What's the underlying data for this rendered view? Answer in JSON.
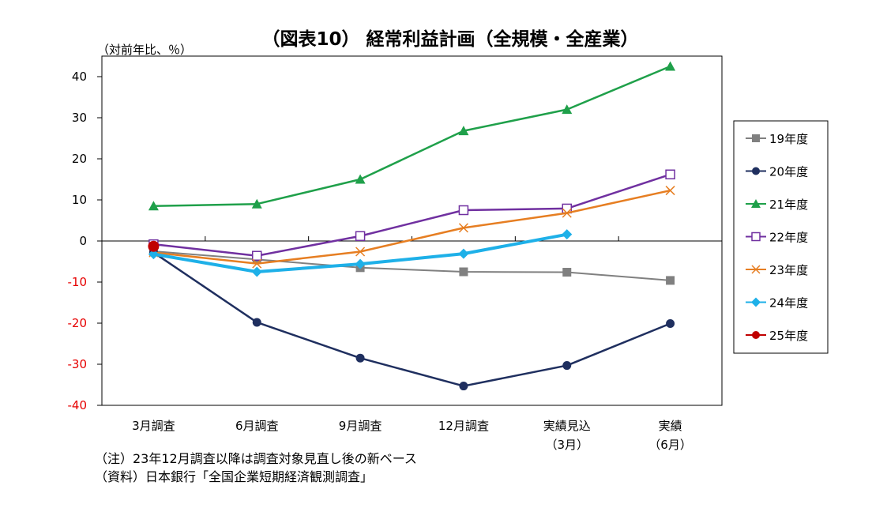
{
  "chart_data": {
    "type": "line",
    "title": "（図表10） 経常利益計画（全規模・全産業）",
    "ylabel": "（対前年比、％）",
    "xlabel": "",
    "ylim": [
      -40,
      45
    ],
    "ytick_values": [
      40,
      30,
      20,
      10,
      0,
      -10,
      -20,
      -30,
      -40
    ],
    "ytick_labels": [
      "40",
      "30",
      "20",
      "10",
      "0",
      "-10",
      "-20",
      "-30",
      "-40"
    ],
    "negative_tick_color": "#e60000",
    "categories": [
      [
        "3月調査"
      ],
      [
        "6月調査"
      ],
      [
        "9月調査"
      ],
      [
        "12月調査"
      ],
      [
        "実績見込",
        "（3月）"
      ],
      [
        "実績",
        "（6月）"
      ]
    ],
    "legend_position": "right",
    "series": [
      {
        "name": "19年度",
        "color": "#808080",
        "marker": "square",
        "values": [
          -2.5,
          -4.5,
          -6.5,
          -7.5,
          -7.6,
          -9.6
        ]
      },
      {
        "name": "20年度",
        "color": "#1f2f5f",
        "marker": "circle",
        "values": [
          -2.8,
          -19.8,
          -28.5,
          -35.3,
          -30.3,
          -20.1
        ]
      },
      {
        "name": "21年度",
        "color": "#1fa04a",
        "marker": "triangle",
        "values": [
          8.5,
          9.0,
          15.0,
          26.8,
          32.0,
          42.5
        ]
      },
      {
        "name": "22年度",
        "color": "#7030a0",
        "marker": "open-square",
        "values": [
          -0.8,
          -3.6,
          1.2,
          7.5,
          7.9,
          16.2
        ]
      },
      {
        "name": "23年度",
        "color": "#e67e22",
        "marker": "x",
        "values": [
          -2.8,
          -5.5,
          -2.6,
          3.2,
          6.8,
          12.3
        ]
      },
      {
        "name": "24年度",
        "color": "#1eb0e8",
        "marker": "diamond",
        "values": [
          -3.2,
          -7.5,
          -5.6,
          -3.1,
          1.6,
          null
        ]
      },
      {
        "name": "25年度",
        "color": "#c00000",
        "marker": "circle",
        "values": [
          -1.3,
          null,
          null,
          null,
          null,
          null
        ]
      }
    ]
  },
  "notes": {
    "note1": "（注）23年12月調査以降は調査対象見直し後の新ベース",
    "note2": "（資料）日本銀行「全国企業短期経済観測調査」"
  }
}
